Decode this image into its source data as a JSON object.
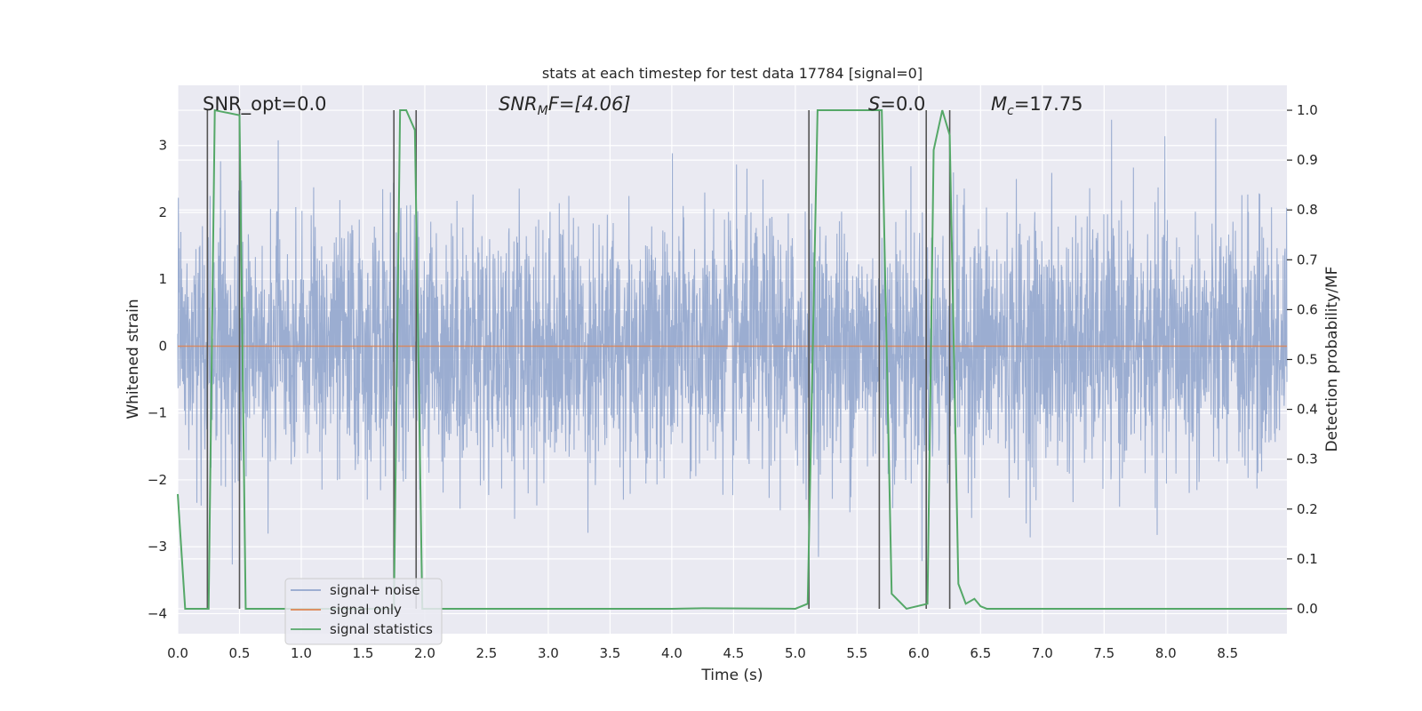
{
  "chart_data": {
    "type": "line",
    "title": "stats at each timestep for test data 17784 [signal=0]",
    "xlabel": "Time (s)",
    "ylabel_left": "Whitened strain",
    "ylabel_right": "Detection probability/MF",
    "xlim": [
      0,
      8.98
    ],
    "ylim_left": [
      -4.3,
      3.9
    ],
    "ylim_right": [
      -0.05,
      1.05
    ],
    "xticks": [
      0.0,
      0.5,
      1.0,
      1.5,
      2.0,
      2.5,
      3.0,
      3.5,
      4.0,
      4.5,
      5.0,
      5.5,
      6.0,
      6.5,
      7.0,
      7.5,
      8.0,
      8.5
    ],
    "xtick_labels": [
      "0.0",
      "0.5",
      "1.0",
      "1.5",
      "2.0",
      "2.5",
      "3.0",
      "3.5",
      "4.0",
      "4.5",
      "5.0",
      "5.5",
      "6.0",
      "6.5",
      "7.0",
      "7.5",
      "8.0",
      "8.5"
    ],
    "yticks_left": [
      -4,
      -3,
      -2,
      -1,
      0,
      1,
      2,
      3
    ],
    "ytick_labels_left": [
      "−4",
      "−3",
      "−2",
      "−1",
      "0",
      "1",
      "2",
      "3"
    ],
    "yticks_right": [
      0.0,
      0.1,
      0.2,
      0.3,
      0.4,
      0.5,
      0.6,
      0.7,
      0.8,
      0.9,
      1.0
    ],
    "ytick_labels_right": [
      "0.0",
      "0.1",
      "0.2",
      "0.3",
      "0.4",
      "0.5",
      "0.6",
      "0.7",
      "0.8",
      "0.9",
      "1.0"
    ],
    "grid": true,
    "legend_position": "bottom-left",
    "annotations": {
      "snr_opt": "SNR_opt=0.0",
      "snr_mf_sym": "SNR",
      "snr_mf_sub": "M",
      "snr_mf_rest": "F=[4.06]",
      "s_sym": "S",
      "s_rest": "=0.0",
      "mc_sym": "M",
      "mc_sub": "c",
      "mc_rest": "=17.75"
    },
    "series": [
      {
        "name": "signal+ noise",
        "color": "#92a6cd",
        "axis": "left",
        "description": "whitened noise, approx std 1, range about -3.6 to 3.6",
        "noise_std": 0.95,
        "seed": 17784
      },
      {
        "name": "signal only",
        "color": "#dd8452",
        "axis": "left",
        "x": [
          0,
          8.98
        ],
        "y": [
          0,
          0
        ]
      },
      {
        "name": "signal statistics",
        "color": "#55a868",
        "axis": "right",
        "x": [
          0.0,
          0.06,
          0.25,
          0.3,
          0.5,
          0.55,
          0.65,
          1.0,
          1.75,
          1.8,
          1.85,
          1.92,
          1.98,
          2.5,
          3.0,
          4.0,
          4.25,
          5.0,
          5.1,
          5.18,
          5.7,
          5.78,
          5.9,
          6.07,
          6.12,
          6.19,
          6.25,
          6.32,
          6.38,
          6.45,
          6.5,
          6.55,
          7.0,
          8.0,
          8.98
        ],
        "y": [
          0.23,
          0.0,
          0.0,
          1.0,
          0.99,
          0.0,
          0.0,
          0.0,
          0.0,
          1.0,
          1.0,
          0.96,
          0.0,
          0.0,
          0.0,
          0.0,
          0.001,
          0.0,
          0.01,
          1.0,
          1.0,
          0.03,
          0.0,
          0.01,
          0.92,
          1.0,
          0.95,
          0.05,
          0.01,
          0.02,
          0.005,
          0.0,
          0.0,
          0.0,
          0.0
        ]
      }
    ],
    "vertical_markers": [
      0.24,
      0.5,
      1.75,
      1.93,
      5.11,
      5.68,
      6.06,
      6.25
    ]
  }
}
